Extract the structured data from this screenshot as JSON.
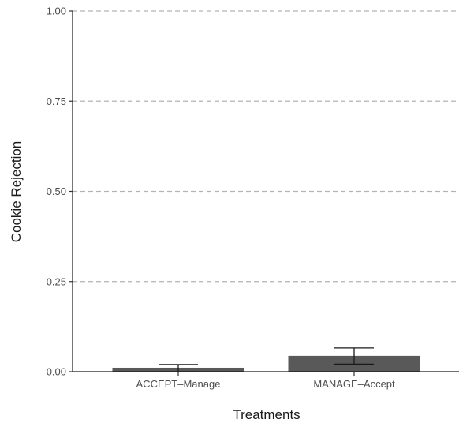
{
  "chart_data": {
    "type": "bar",
    "categories": [
      "ACCEPT–Manage",
      "MANAGE–Accept"
    ],
    "values": [
      0.011,
      0.044
    ],
    "error_bars": [
      {
        "low": 0.0,
        "high": 0.02
      },
      {
        "low": 0.021,
        "high": 0.066
      }
    ],
    "xlabel": "Treatments",
    "ylabel": "Cookie Rejection",
    "ylim": [
      0,
      1
    ],
    "yticks": [
      "0.00",
      "0.25",
      "0.50",
      "0.75",
      "1.00"
    ],
    "ytick_values": [
      0,
      0.25,
      0.5,
      0.75,
      1
    ],
    "grid": "horizontal dashed",
    "bar_color": "#595959"
  }
}
